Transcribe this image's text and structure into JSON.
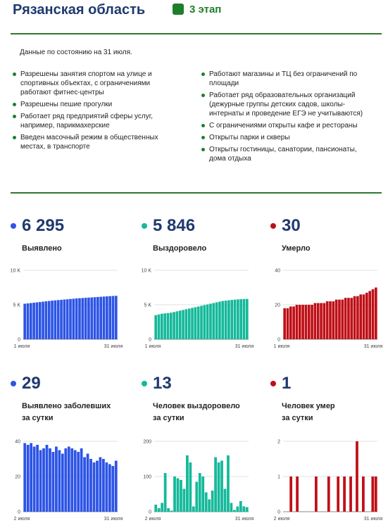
{
  "header": {
    "title": "Рязанская область",
    "stage": "3 этап"
  },
  "info": {
    "as_of": "Данные по состоянию на 31 июля.",
    "left_items": [
      "Разрешены занятия спортом на улице и спортивных объектах, с ограничениями работают фитнес-центры",
      "Разрешены пешие прогулки",
      "Работает ряд предприятий сферы услуг, например, парикмахерские",
      "Введен масочный режим в общественных местах, в транспорте"
    ],
    "right_items": [
      "Работают магазины и ТЦ без ограничений по площади",
      "Работает ряд образовательных организаций (дежурные группы детских садов, школы-интернаты и проведение ЕГЭ не учитываются)",
      "С ограничениями открыты кафе и рестораны",
      "Открыты парки и скверы",
      "Открыты гостиницы, санатории, пансионаты, дома отдыха"
    ]
  },
  "colors": {
    "blue": "#2d54e6",
    "teal": "#14b99a",
    "red": "#bf0f17",
    "accent_green": "#1e7f2a"
  },
  "panels": [
    {
      "id": "detected",
      "value": "6 295",
      "label_lines": [
        "Выявлено"
      ],
      "color": "#2d54e6"
    },
    {
      "id": "recovered",
      "value": "5 846",
      "label_lines": [
        "Выздоровело"
      ],
      "color": "#14b99a"
    },
    {
      "id": "died",
      "value": "30",
      "label_lines": [
        "Умерло"
      ],
      "color": "#bf0f17"
    },
    {
      "id": "detected_daily",
      "value": "29",
      "label_lines": [
        "Выявлено заболевших",
        "за сутки"
      ],
      "color": "#2d54e6"
    },
    {
      "id": "recovered_daily",
      "value": "13",
      "label_lines": [
        "Человек выздоровело",
        "за сутки"
      ],
      "color": "#14b99a"
    },
    {
      "id": "died_daily",
      "value": "1",
      "label_lines": [
        "Человек умер",
        "за сутки"
      ],
      "color": "#bf0f17"
    }
  ],
  "chart_data": [
    {
      "type": "bar",
      "title": "Выявлено",
      "color": "#2d54e6",
      "x_start_label": "1 июля",
      "x_end_label": "31 июля",
      "y_ticks": [
        0,
        5000,
        10000
      ],
      "y_tick_labels": [
        "0",
        "5 K",
        "10 K"
      ],
      "ylim": [
        0,
        10000
      ],
      "values": [
        5150,
        5200,
        5250,
        5300,
        5350,
        5400,
        5450,
        5500,
        5550,
        5600,
        5640,
        5680,
        5720,
        5760,
        5800,
        5840,
        5880,
        5920,
        5950,
        5980,
        6010,
        6040,
        6070,
        6100,
        6130,
        6160,
        6190,
        6220,
        6250,
        6275,
        6295
      ]
    },
    {
      "type": "bar",
      "title": "Выздоровело",
      "color": "#14b99a",
      "x_start_label": "1 июля",
      "x_end_label": "31 июля",
      "y_ticks": [
        0,
        5000,
        10000
      ],
      "y_tick_labels": [
        "0",
        "5 K",
        "10 K"
      ],
      "ylim": [
        0,
        10000
      ],
      "values": [
        3500,
        3600,
        3700,
        3750,
        3800,
        3850,
        3950,
        4050,
        4150,
        4250,
        4350,
        4450,
        4550,
        4650,
        4750,
        4850,
        4950,
        5050,
        5150,
        5250,
        5350,
        5450,
        5550,
        5600,
        5650,
        5700,
        5750,
        5780,
        5810,
        5833,
        5846
      ]
    },
    {
      "type": "bar",
      "title": "Умерло",
      "color": "#bf0f17",
      "x_start_label": "1 июля",
      "x_end_label": "31 июля",
      "y_ticks": [
        0,
        20,
        40
      ],
      "y_tick_labels": [
        "0",
        "20",
        "40"
      ],
      "ylim": [
        0,
        40
      ],
      "values": [
        18,
        18,
        19,
        19,
        20,
        20,
        20,
        20,
        20,
        20,
        21,
        21,
        21,
        21,
        22,
        22,
        22,
        23,
        23,
        23,
        24,
        24,
        24,
        25,
        25,
        26,
        26,
        27,
        28,
        29,
        30
      ]
    },
    {
      "type": "bar",
      "title": "Выявлено заболевших за сутки",
      "color": "#2d54e6",
      "x_start_label": "2 июля",
      "x_end_label": "31 июля",
      "y_ticks": [
        0,
        20,
        40
      ],
      "y_tick_labels": [
        "0",
        "20",
        "40"
      ],
      "ylim": [
        0,
        40
      ],
      "values": [
        39,
        38,
        39,
        37,
        38,
        35,
        36,
        38,
        36,
        34,
        37,
        35,
        33,
        36,
        37,
        36,
        35,
        34,
        36,
        31,
        33,
        30,
        28,
        29,
        31,
        30,
        28,
        27,
        26,
        29
      ]
    },
    {
      "type": "bar",
      "title": "Человек выздоровело за сутки",
      "color": "#14b99a",
      "x_start_label": "2 июля",
      "x_end_label": "31 июля",
      "y_ticks": [
        0,
        100,
        200
      ],
      "y_tick_labels": [
        "0",
        "100",
        "200"
      ],
      "ylim": [
        0,
        200
      ],
      "values": [
        20,
        10,
        25,
        110,
        10,
        3,
        100,
        95,
        90,
        65,
        160,
        140,
        15,
        85,
        110,
        100,
        55,
        35,
        60,
        155,
        140,
        145,
        65,
        160,
        25,
        5,
        15,
        30,
        15,
        13
      ]
    },
    {
      "type": "bar",
      "title": "Человек умер за сутки",
      "color": "#bf0f17",
      "x_start_label": "2 июля",
      "x_end_label": "31 июля",
      "y_ticks": [
        0,
        1,
        2
      ],
      "y_tick_labels": [
        "0",
        "1",
        "2"
      ],
      "ylim": [
        0,
        2
      ],
      "values": [
        0,
        0,
        1,
        0,
        1,
        0,
        0,
        0,
        0,
        0,
        1,
        0,
        0,
        0,
        1,
        0,
        0,
        1,
        0,
        1,
        0,
        1,
        0,
        2,
        0,
        1,
        0,
        0,
        1,
        1
      ]
    }
  ]
}
